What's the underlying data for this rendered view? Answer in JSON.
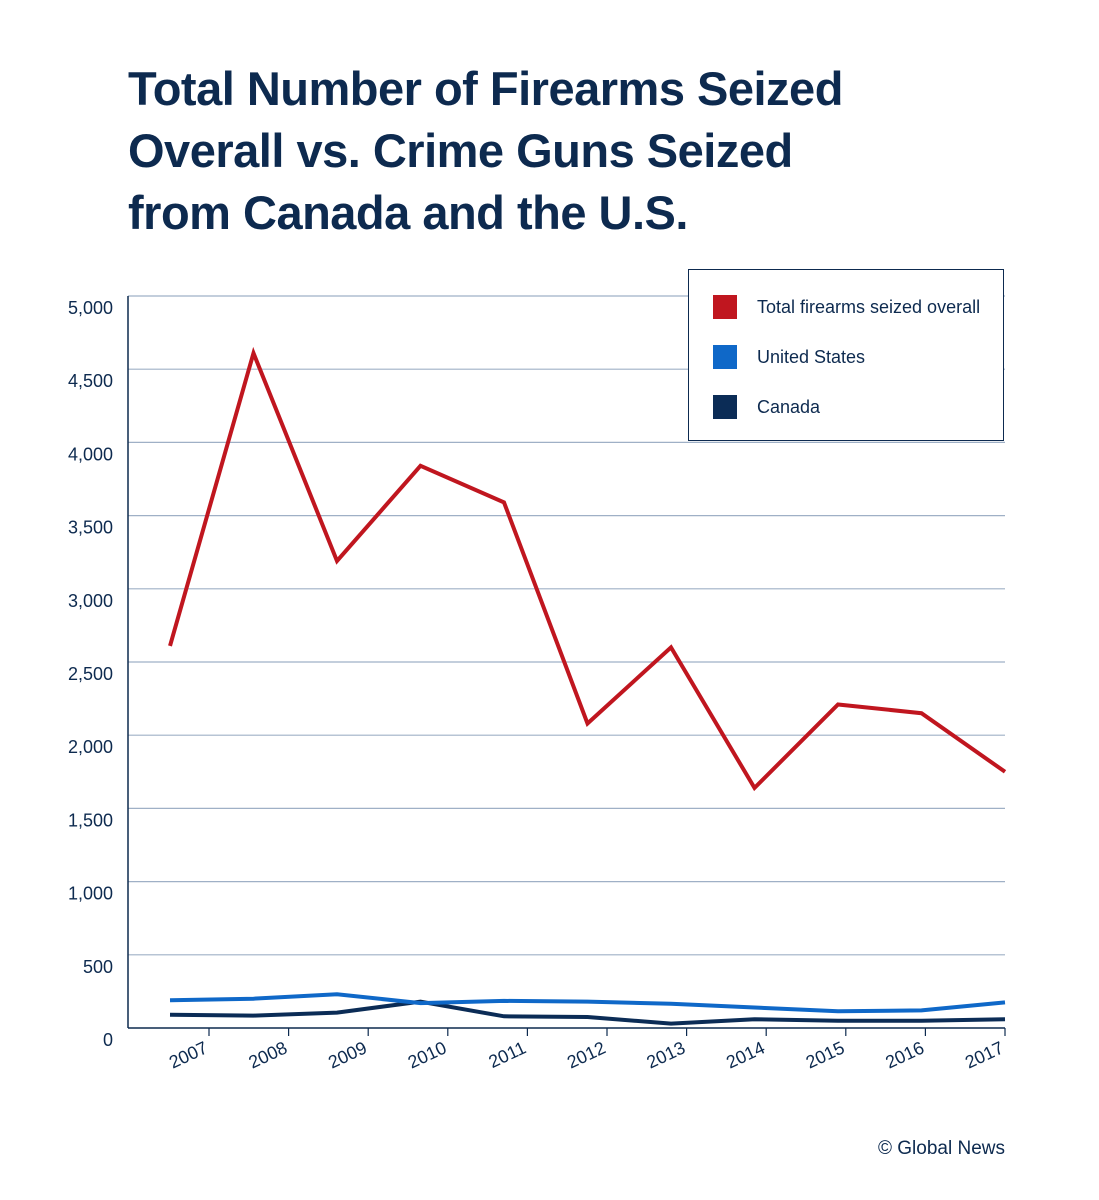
{
  "title": {
    "line1": "Total Number of Firearms Seized",
    "line2": "Overall vs. Crime Guns Seized",
    "line3": "from Canada and the U.S."
  },
  "credit": "© Global News",
  "colors": {
    "total": "#c0161f",
    "us": "#0f68c8",
    "canada": "#0b2c56",
    "text": "#0d2a4f",
    "grid": "#9fb0c6"
  },
  "chart_data": {
    "type": "line",
    "title": "Total Number of Firearms Seized Overall vs. Crime Guns Seized from Canada and the U.S.",
    "xlabel": "",
    "ylabel": "",
    "ylim": [
      0,
      5000
    ],
    "grid": true,
    "legend_position": "top-right",
    "categories": [
      "2007",
      "2008",
      "2009",
      "2010",
      "2011",
      "2012",
      "2013",
      "2014",
      "2015",
      "2016",
      "2017"
    ],
    "yticks": [
      {
        "value": 0,
        "label": "0"
      },
      {
        "value": 500,
        "label": "500"
      },
      {
        "value": 1000,
        "label": "1,000"
      },
      {
        "value": 1500,
        "label": "1,500"
      },
      {
        "value": 2000,
        "label": "2,000"
      },
      {
        "value": 2500,
        "label": "2,500"
      },
      {
        "value": 3000,
        "label": "3,000"
      },
      {
        "value": 3500,
        "label": "3,500"
      },
      {
        "value": 4000,
        "label": "4,000"
      },
      {
        "value": 4500,
        "label": "4,500"
      },
      {
        "value": 5000,
        "label": "5,000"
      }
    ],
    "series": [
      {
        "name": "Total firearms seized overall",
        "key": "total",
        "values": [
          2610,
          4610,
          3190,
          3840,
          3590,
          2080,
          2600,
          1640,
          2210,
          2150,
          1750
        ]
      },
      {
        "name": "United States",
        "key": "us",
        "values": [
          190,
          200,
          230,
          170,
          185,
          180,
          165,
          140,
          115,
          120,
          175
        ]
      },
      {
        "name": "Canada",
        "key": "canada",
        "values": [
          90,
          85,
          105,
          180,
          80,
          75,
          30,
          60,
          50,
          50,
          60
        ]
      }
    ]
  }
}
